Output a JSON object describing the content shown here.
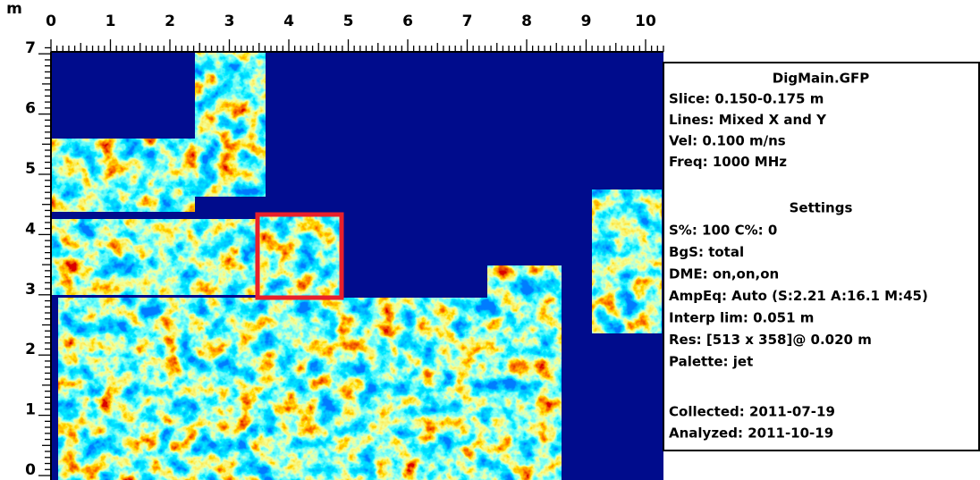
{
  "axes": {
    "unit": "m",
    "x_ticks": [
      0,
      1,
      2,
      3,
      4,
      5,
      6,
      7,
      8,
      9,
      10
    ],
    "y_ticks": [
      0,
      1,
      2,
      3,
      4,
      5,
      6,
      7
    ]
  },
  "panel": {
    "title": "DigMain.GFP",
    "info": [
      "Slice: 0.150-0.175 m",
      "Lines: Mixed X and Y",
      "Vel: 0.100 m/ns",
      "Freq: 1000 MHz"
    ],
    "settings_title": "Settings",
    "settings": [
      "S%: 100  C%: 0",
      "BgS: total",
      "DME: on,on,on",
      "AmpEq: Auto (S:2.21 A:16.1 M:45)",
      "Interp lim: 0.051 m",
      "Res: [513 x 358]@ 0.020 m",
      "Palette: jet"
    ],
    "dates": [
      "Collected: 2011-07-19",
      "Analyzed: 2011-10-19"
    ]
  }
}
